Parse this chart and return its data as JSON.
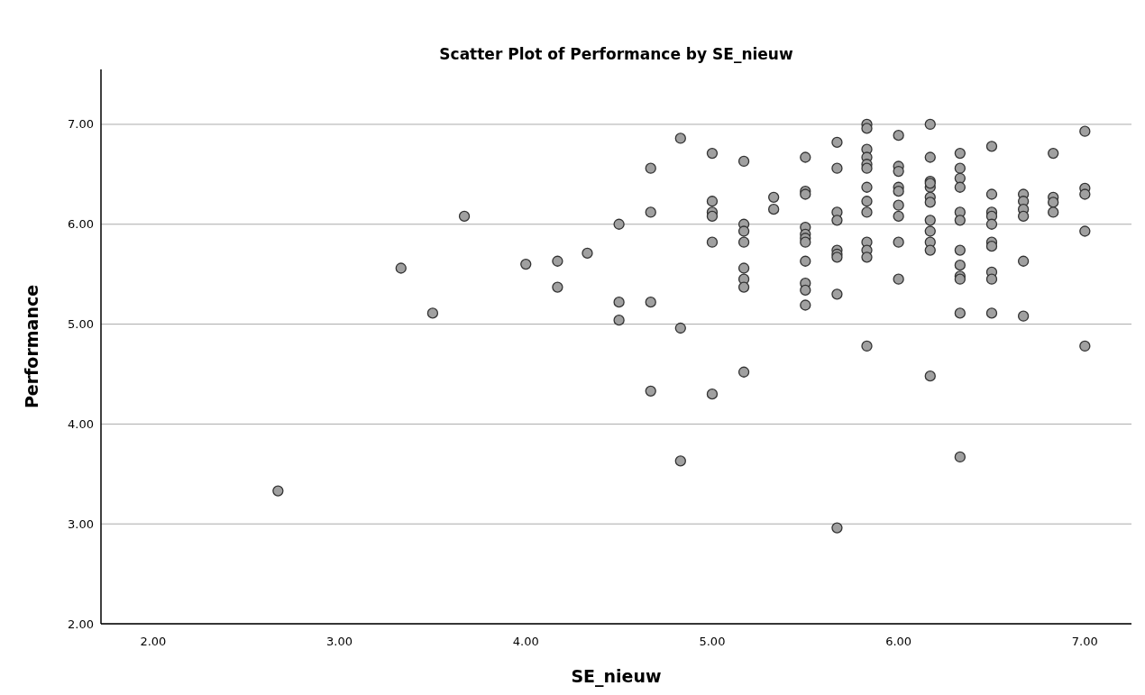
{
  "chart_data": {
    "type": "scatter",
    "title": "Scatter Plot of Performance by SE_nieuw",
    "xlabel": "SE_nieuw",
    "ylabel": "Performance",
    "xlim": [
      1.72,
      7.25
    ],
    "ylim": [
      2,
      7.55
    ],
    "xticks": [
      {
        "value": 2,
        "label": "2.00"
      },
      {
        "value": 3,
        "label": "3.00"
      },
      {
        "value": 4,
        "label": "4.00"
      },
      {
        "value": 5,
        "label": "5.00"
      },
      {
        "value": 6,
        "label": "6.00"
      },
      {
        "value": 7,
        "label": "7.00"
      }
    ],
    "yticks": [
      {
        "value": 2,
        "label": "2.00"
      },
      {
        "value": 3,
        "label": "3.00"
      },
      {
        "value": 4,
        "label": "4.00"
      },
      {
        "value": 5,
        "label": "5.00"
      },
      {
        "value": 6,
        "label": "6.00"
      },
      {
        "value": 7,
        "label": "7.00"
      }
    ],
    "grid": "y",
    "marker": "circle",
    "series": [
      {
        "color": "#a0a0a0",
        "x": [
          2.67,
          3.33,
          3.5,
          3.67,
          4.0,
          4.17,
          4.17,
          4.33,
          4.5,
          4.5,
          4.5,
          4.67,
          4.67,
          4.67,
          4.67,
          4.83,
          4.83,
          4.83,
          5.0,
          5.0,
          5.0,
          5.0,
          5.0,
          5.0,
          5.17,
          5.17,
          5.17,
          5.17,
          5.17,
          5.17,
          5.17,
          5.17,
          5.33,
          5.33,
          5.5,
          5.5,
          5.5,
          5.5,
          5.5,
          5.5,
          5.5,
          5.5,
          5.5,
          5.5,
          5.5,
          5.67,
          5.67,
          5.67,
          5.67,
          5.67,
          5.67,
          5.67,
          5.67,
          5.67,
          5.83,
          5.83,
          5.83,
          5.83,
          5.83,
          5.83,
          5.83,
          5.83,
          5.83,
          5.83,
          5.83,
          5.83,
          5.83,
          6.0,
          6.0,
          6.0,
          6.0,
          6.0,
          6.0,
          6.0,
          6.0,
          6.0,
          6.17,
          6.17,
          6.17,
          6.17,
          6.17,
          6.17,
          6.17,
          6.17,
          6.17,
          6.17,
          6.17,
          6.17,
          6.33,
          6.33,
          6.33,
          6.33,
          6.33,
          6.33,
          6.33,
          6.33,
          6.33,
          6.33,
          6.33,
          6.33,
          6.5,
          6.5,
          6.5,
          6.5,
          6.5,
          6.5,
          6.5,
          6.5,
          6.5,
          6.5,
          6.67,
          6.67,
          6.67,
          6.67,
          6.67,
          6.67,
          6.83,
          6.83,
          6.83,
          6.83,
          7.0,
          7.0,
          7.0,
          7.0,
          7.0
        ],
        "values": [
          3.33,
          5.56,
          5.11,
          6.08,
          5.6,
          5.63,
          5.37,
          5.71,
          6.0,
          5.22,
          5.04,
          6.56,
          6.12,
          5.22,
          4.33,
          6.86,
          4.96,
          3.63,
          6.71,
          6.23,
          6.12,
          6.08,
          5.82,
          4.3,
          6.63,
          6.0,
          5.93,
          5.82,
          5.56,
          5.45,
          5.37,
          4.52,
          6.27,
          6.15,
          6.67,
          6.33,
          6.3,
          5.97,
          5.9,
          5.86,
          5.82,
          5.63,
          5.41,
          5.34,
          5.19,
          6.82,
          6.56,
          6.12,
          6.04,
          5.74,
          5.7,
          5.67,
          5.3,
          2.96,
          7.0,
          6.96,
          6.75,
          6.67,
          6.6,
          6.56,
          6.37,
          6.23,
          6.12,
          5.82,
          5.74,
          5.67,
          4.78,
          6.89,
          6.58,
          6.53,
          6.37,
          6.33,
          6.19,
          6.08,
          5.82,
          5.45,
          7.0,
          6.67,
          6.43,
          6.37,
          6.27,
          6.22,
          6.04,
          5.93,
          5.82,
          5.74,
          4.48,
          6.41,
          6.71,
          6.56,
          6.46,
          6.37,
          6.12,
          6.04,
          5.74,
          5.59,
          5.48,
          5.45,
          5.11,
          3.67,
          6.78,
          6.3,
          6.12,
          6.08,
          6.0,
          5.82,
          5.78,
          5.52,
          5.45,
          5.11,
          6.3,
          6.23,
          6.15,
          6.08,
          5.63,
          5.08,
          6.71,
          6.27,
          6.22,
          6.12,
          6.93,
          6.36,
          6.3,
          5.93,
          4.78
        ]
      }
    ]
  }
}
